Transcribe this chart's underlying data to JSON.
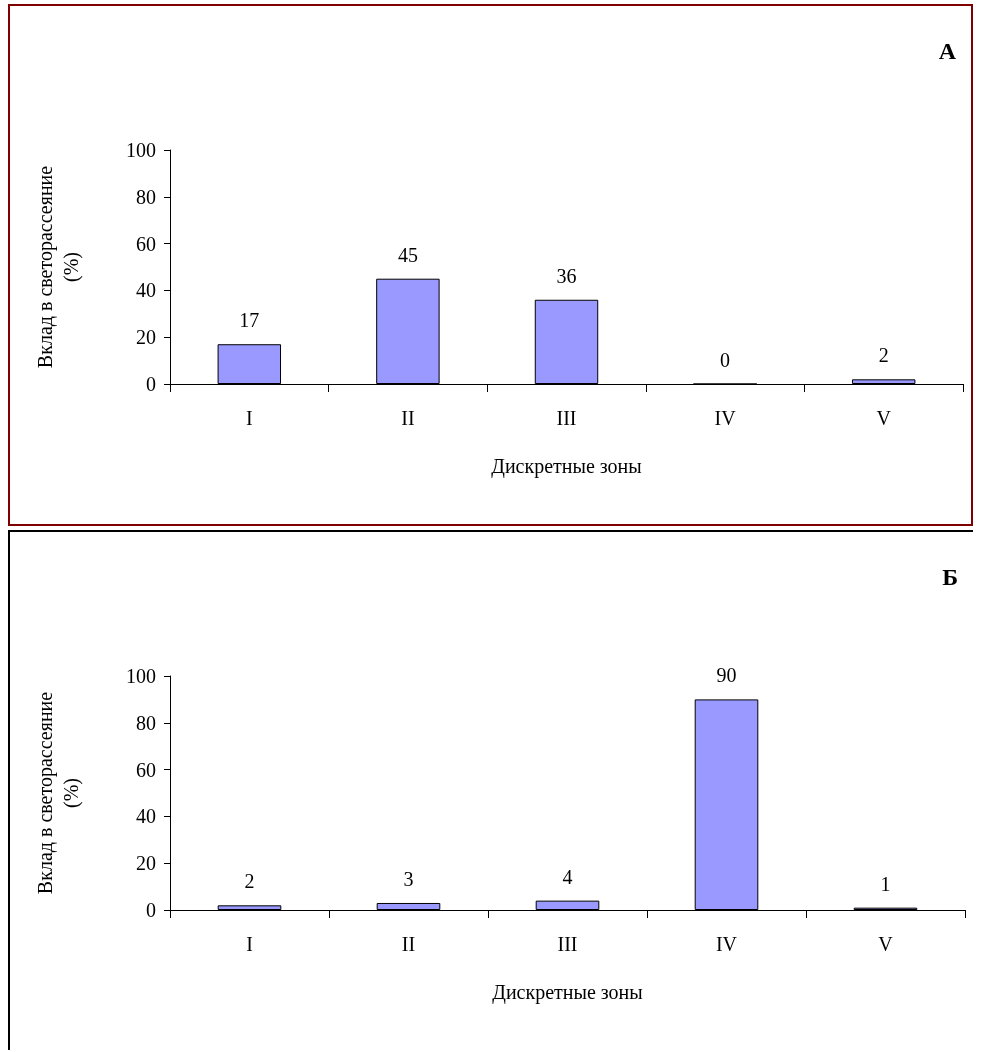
{
  "chart_data": [
    {
      "type": "bar",
      "title": "А",
      "xlabel": "Дискретные зоны",
      "ylabel": "Вклад в светорассеяние\n(%)",
      "categories": [
        "I",
        "II",
        "III",
        "IV",
        "V"
      ],
      "values": [
        17,
        45,
        36,
        0,
        2
      ],
      "color": "#9999ff",
      "ylim": [
        0,
        100
      ],
      "yticks": [
        0,
        20,
        40,
        60,
        80,
        100
      ],
      "grid": false,
      "data_labels": true
    },
    {
      "type": "bar",
      "title": "Б",
      "xlabel": "Дискретные зоны",
      "ylabel": "Вклад в светорассеяние\n(%)",
      "categories": [
        "I",
        "II",
        "III",
        "IV",
        "V"
      ],
      "values": [
        2,
        3,
        4,
        90,
        1
      ],
      "color": "#9999ff",
      "ylim": [
        0,
        100
      ],
      "yticks": [
        0,
        20,
        40,
        60,
        80,
        100
      ],
      "grid": false,
      "data_labels": true
    }
  ]
}
